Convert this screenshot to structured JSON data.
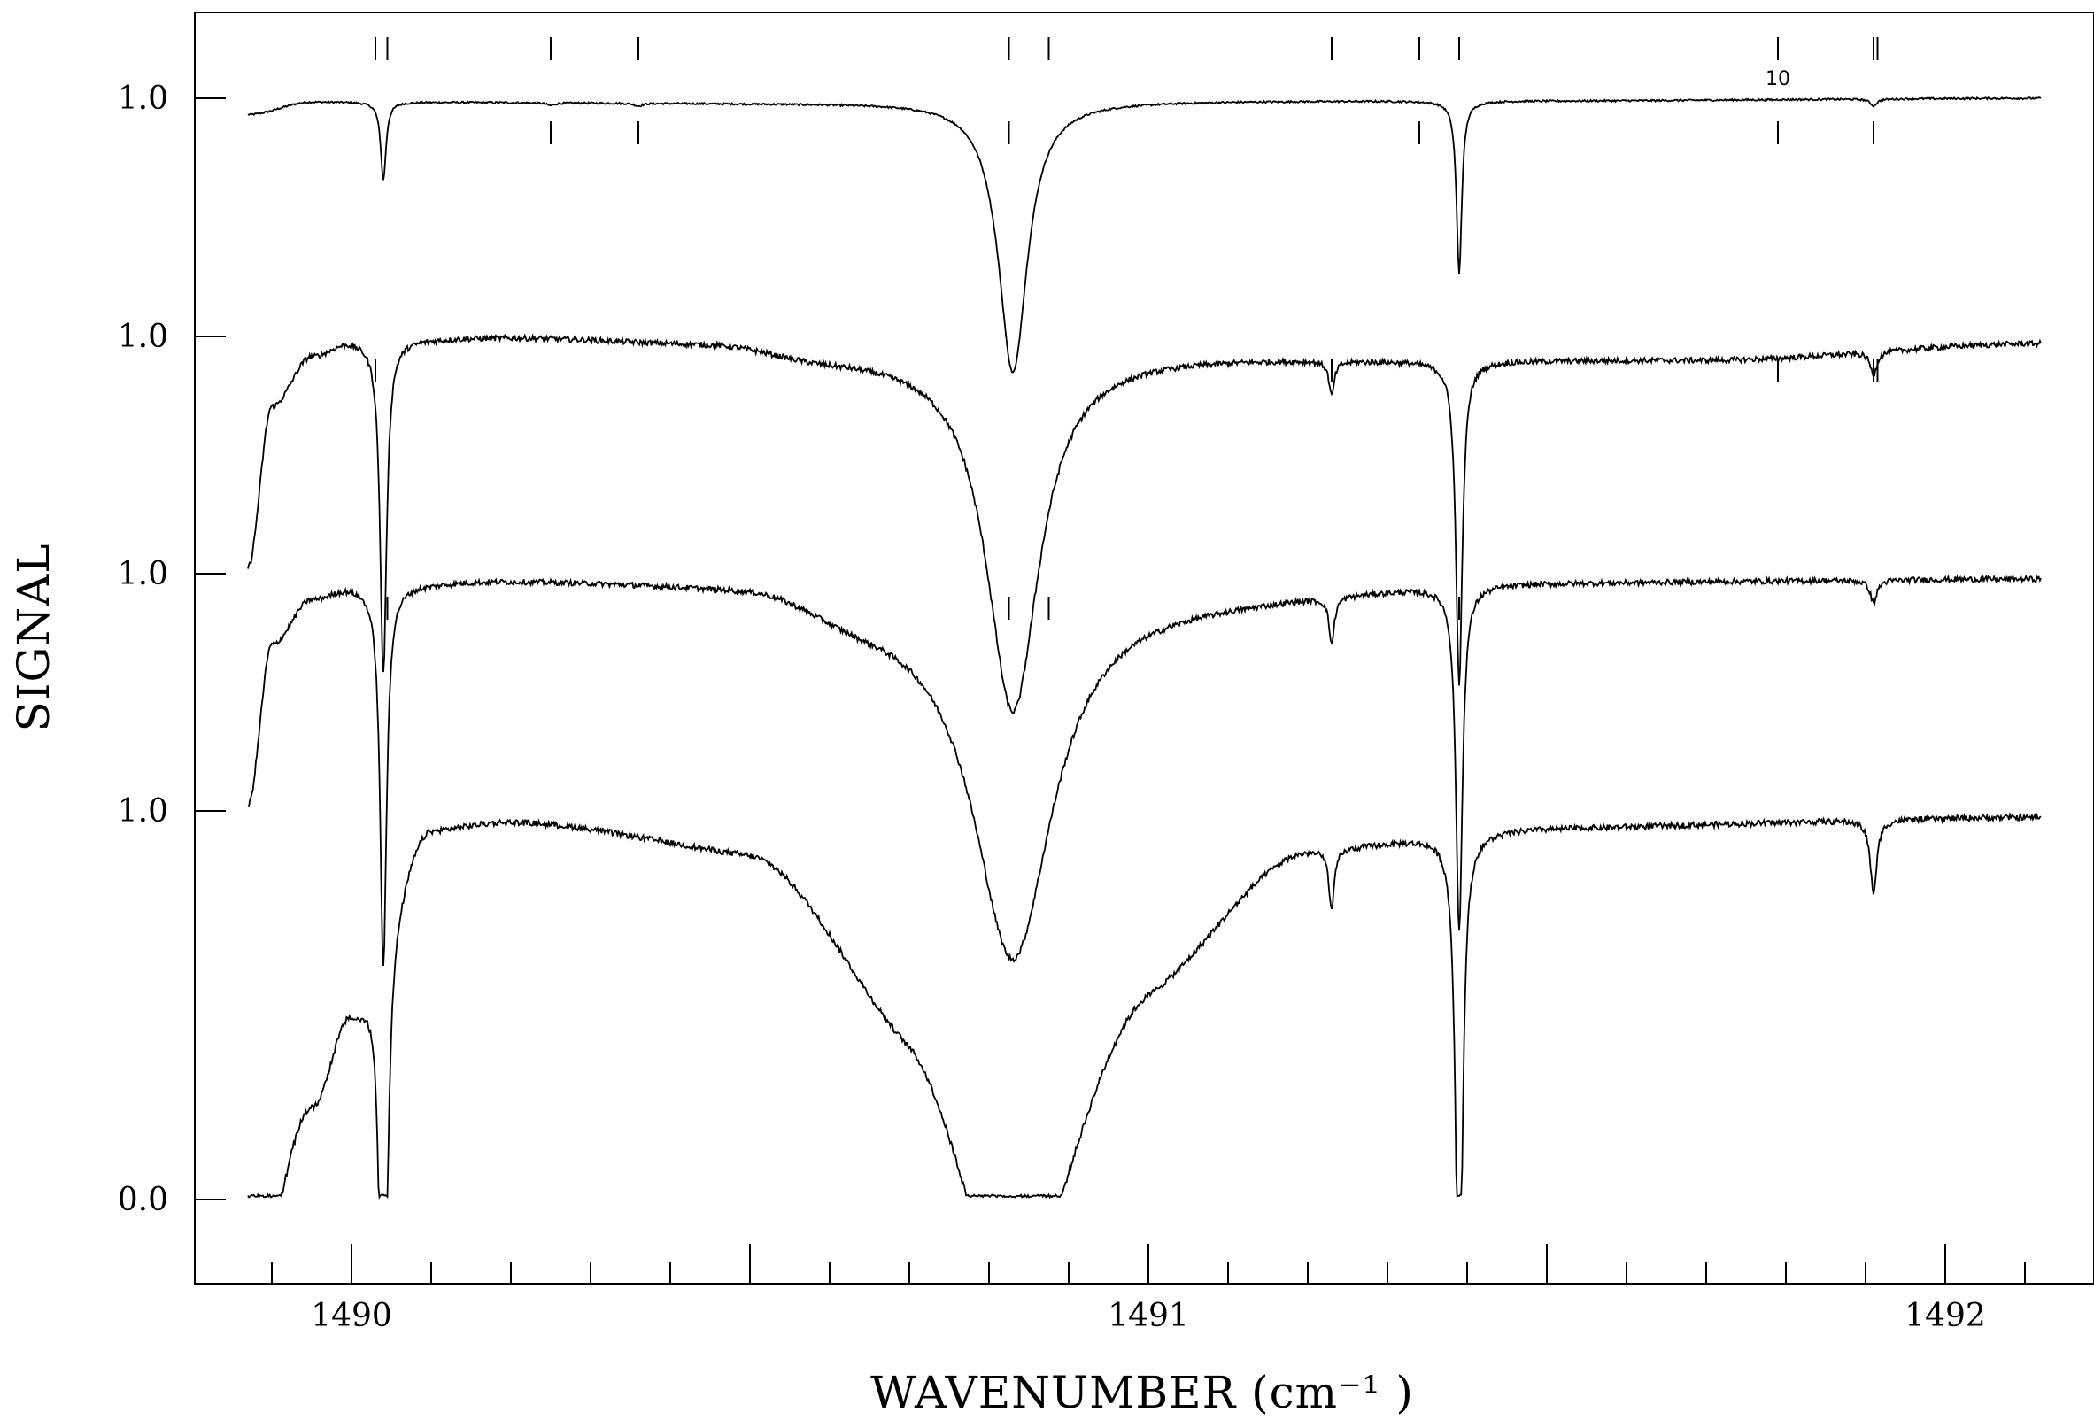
{
  "chart_data": {
    "type": "line",
    "xlabel": "WAVENUMBER (cm⁻¹ )",
    "ylabel": "SIGNAL",
    "xlim": [
      1489.8,
      1492.35
    ],
    "x_ticks_major": [
      1490,
      1491,
      1492
    ],
    "x_tick_labels": [
      "1490",
      "1491",
      "1492"
    ],
    "y_tick_labels": [
      "1.0",
      "1.0",
      "1.0",
      "1.0",
      "0.0"
    ],
    "stacked": true,
    "grid": false,
    "legend": "none",
    "annotations": [
      {
        "text": "10",
        "x": 1491.79
      }
    ],
    "series": [
      {
        "baseline": 1.0,
        "x_range": [
          1489.87,
          1492.12
        ],
        "shape": [
          {
            "x": 1489.87,
            "y": 0.93
          },
          {
            "x": 1489.95,
            "y": 0.985
          },
          {
            "x": 1490.5,
            "y": 0.98
          },
          {
            "x": 1490.9,
            "y": 0.99
          },
          {
            "x": 1491.5,
            "y": 0.99
          },
          {
            "x": 1492.12,
            "y": 1.0
          }
        ],
        "lines": [
          {
            "x": 1490.04,
            "depth": 0.34,
            "width": 0.004
          },
          {
            "x": 1490.25,
            "depth": 0.012,
            "width": 0.006
          },
          {
            "x": 1490.36,
            "depth": 0.012,
            "width": 0.006
          },
          {
            "x": 1490.83,
            "depth": 1.18,
            "width": 0.022
          },
          {
            "x": 1491.39,
            "depth": 0.75,
            "width": 0.004
          },
          {
            "x": 1491.91,
            "depth": 0.03,
            "width": 0.005
          }
        ],
        "markers_above": [
          1490.03,
          1490.045,
          1490.25,
          1490.36,
          1490.825,
          1490.875,
          1491.23,
          1491.34,
          1491.39,
          1491.79,
          1491.91,
          1491.915
        ],
        "markers_below": [
          1490.25,
          1490.36,
          1490.825,
          1491.34,
          1491.79,
          1491.91
        ]
      },
      {
        "baseline": 1.0,
        "x_range": [
          1489.87,
          1492.12
        ],
        "shape": [
          {
            "x": 1489.87,
            "y": 0.0
          },
          {
            "x": 1489.9,
            "y": 0.7
          },
          {
            "x": 1489.95,
            "y": 0.92
          },
          {
            "x": 1490.0,
            "y": 0.985
          },
          {
            "x": 1490.2,
            "y": 1.0
          },
          {
            "x": 1490.45,
            "y": 0.98
          },
          {
            "x": 1490.6,
            "y": 0.92
          },
          {
            "x": 1491.0,
            "y": 0.92
          },
          {
            "x": 1491.4,
            "y": 0.9
          },
          {
            "x": 1491.7,
            "y": 0.9
          },
          {
            "x": 1492.12,
            "y": 0.97
          }
        ],
        "lines": [
          {
            "x": 1490.04,
            "depth": 1.45,
            "width": 0.005
          },
          {
            "x": 1490.83,
            "depth": 1.55,
            "width": 0.04
          },
          {
            "x": 1491.23,
            "depth": 0.15,
            "width": 0.004
          },
          {
            "x": 1491.39,
            "depth": 1.4,
            "width": 0.005
          },
          {
            "x": 1491.91,
            "depth": 0.1,
            "width": 0.005
          }
        ],
        "markers_above": [],
        "markers_below": [
          1490.03,
          1491.23,
          1491.79,
          1491.91,
          1491.915
        ]
      },
      {
        "baseline": 1.0,
        "x_range": [
          1489.87,
          1492.12
        ],
        "shape": [
          {
            "x": 1489.87,
            "y": 0.0
          },
          {
            "x": 1489.9,
            "y": 0.7
          },
          {
            "x": 1489.95,
            "y": 0.9
          },
          {
            "x": 1490.0,
            "y": 0.95
          },
          {
            "x": 1490.2,
            "y": 0.98
          },
          {
            "x": 1490.5,
            "y": 0.97
          },
          {
            "x": 1490.65,
            "y": 0.85
          },
          {
            "x": 1491.0,
            "y": 0.9
          },
          {
            "x": 1491.5,
            "y": 0.97
          },
          {
            "x": 1492.12,
            "y": 0.98
          }
        ],
        "lines": [
          {
            "x": 1490.04,
            "depth": 1.65,
            "width": 0.005
          },
          {
            "x": 1490.83,
            "depth": 1.55,
            "width": 0.06
          },
          {
            "x": 1491.23,
            "depth": 0.2,
            "width": 0.004
          },
          {
            "x": 1491.39,
            "depth": 1.5,
            "width": 0.005
          },
          {
            "x": 1491.91,
            "depth": 0.1,
            "width": 0.005
          }
        ],
        "markers_above": [],
        "markers_below": [
          1490.045,
          1490.825,
          1490.875,
          1491.39
        ]
      },
      {
        "baseline": 1.0,
        "x_range": [
          1489.87,
          1492.12
        ],
        "shape": [
          {
            "x": 1489.87,
            "y": -1.0
          },
          {
            "x": 1489.95,
            "y": -0.2
          },
          {
            "x": 1490.0,
            "y": 0.2
          },
          {
            "x": 1490.1,
            "y": 0.95
          },
          {
            "x": 1490.2,
            "y": 0.98
          },
          {
            "x": 1490.5,
            "y": 0.9
          },
          {
            "x": 1490.7,
            "y": 0.4
          },
          {
            "x": 1490.83,
            "y": 0.0
          },
          {
            "x": 1491.0,
            "y": 0.5
          },
          {
            "x": 1491.2,
            "y": 0.9
          },
          {
            "x": 1491.5,
            "y": 0.95
          },
          {
            "x": 1492.12,
            "y": 0.98
          }
        ],
        "lines": [
          {
            "x": 1490.04,
            "depth": 2.35,
            "width": 0.005
          },
          {
            "x": 1490.83,
            "depth": 1.0,
            "width": 0.1
          },
          {
            "x": 1491.23,
            "depth": 0.25,
            "width": 0.004
          },
          {
            "x": 1491.39,
            "depth": 2.15,
            "width": 0.005
          },
          {
            "x": 1491.91,
            "depth": 0.3,
            "width": 0.005
          }
        ],
        "markers_above": [],
        "markers_below": []
      }
    ]
  }
}
